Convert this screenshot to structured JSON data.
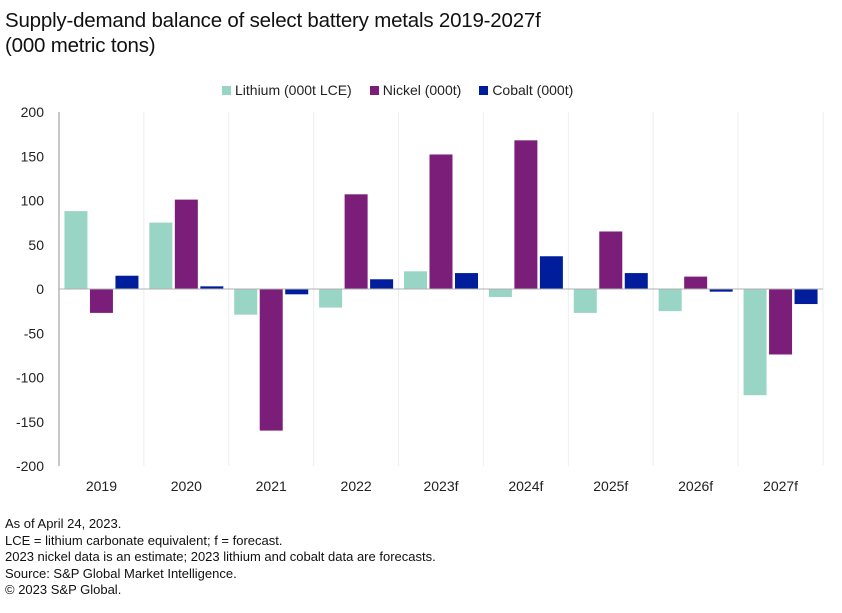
{
  "chart_data": {
    "type": "bar",
    "title": "Supply-demand balance of select battery metals 2019-2027f",
    "subtitle": "(000 metric tons)",
    "categories": [
      "2019",
      "2020",
      "2021",
      "2022",
      "2023f",
      "2024f",
      "2025f",
      "2026f",
      "2027f"
    ],
    "series": [
      {
        "name": "Lithium (000t LCE)",
        "color": "#98d5c5",
        "values": [
          88,
          75,
          -29,
          -21,
          20,
          -9,
          -27,
          -25,
          -120
        ]
      },
      {
        "name": "Nickel (000t)",
        "color": "#7b1e7a",
        "values": [
          -27,
          101,
          -160,
          107,
          152,
          168,
          65,
          14,
          -74
        ]
      },
      {
        "name": "Cobalt (000t)",
        "color": "#001e9c",
        "values": [
          15,
          3,
          -6,
          11,
          18,
          37,
          18,
          -3,
          -17
        ]
      }
    ],
    "ylim": [
      -200,
      200
    ],
    "yticks": [
      "200",
      "150",
      "100",
      "50",
      "0",
      "-50",
      "-100",
      "-150",
      "-200"
    ],
    "xlabel": "",
    "ylabel": "",
    "grid": "vertical category separators",
    "legend": "top"
  },
  "notes": [
    "As of April 24, 2023.",
    "LCE = lithium carbonate equivalent; f = forecast.",
    "2023 nickel data is an estimate; 2023 lithium and cobalt data are forecasts.",
    "Source: S&P Global Market Intelligence.",
    "© 2023 S&P Global."
  ]
}
